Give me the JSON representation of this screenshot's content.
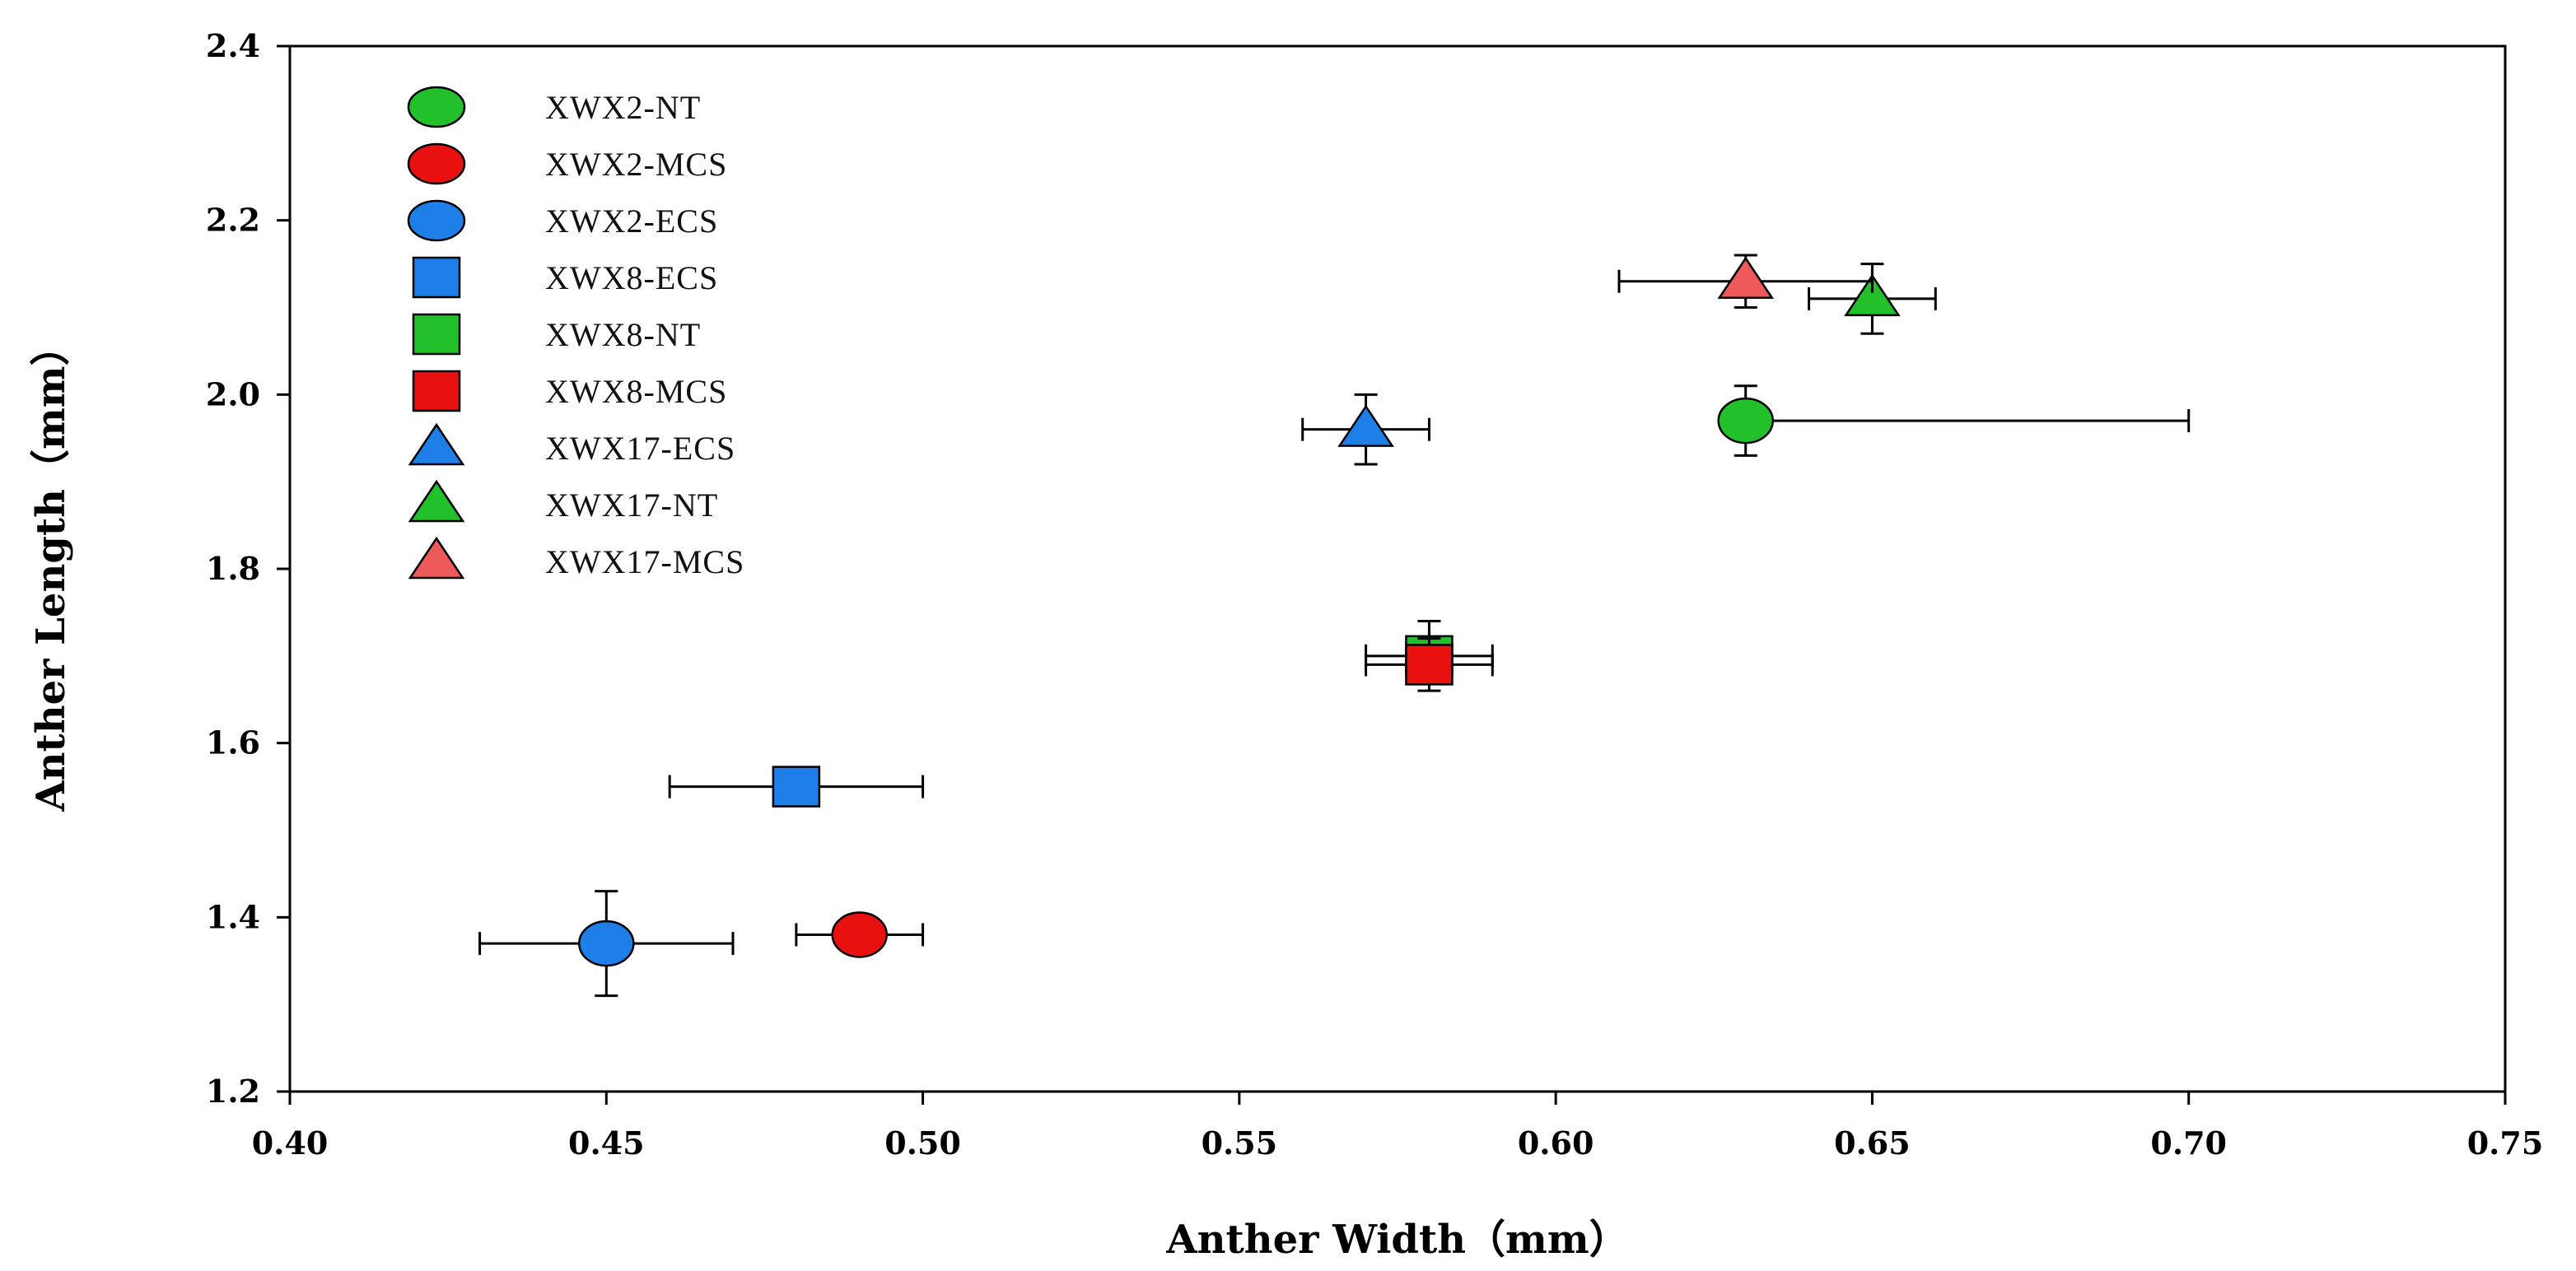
{
  "chart_data": {
    "type": "scatter",
    "title": "",
    "xlabel": "Anther Width（mm）",
    "ylabel": "Anther Length（mm）",
    "xlim": [
      0.4,
      0.75
    ],
    "ylim": [
      1.2,
      2.4
    ],
    "xticks": [
      "0.40",
      "0.45",
      "0.50",
      "0.55",
      "0.60",
      "0.65",
      "0.70",
      "0.75"
    ],
    "yticks": [
      "1.2",
      "1.4",
      "1.6",
      "1.8",
      "2.0",
      "2.2",
      "2.4"
    ],
    "grid": false,
    "legend_position": "top-left",
    "series": [
      {
        "name": "XWX2-NT",
        "marker": "circle",
        "color": "#22c02a",
        "x": 0.63,
        "y": 1.97,
        "xerr": [
          0.63,
          0.7
        ],
        "yerr": [
          1.93,
          2.01
        ]
      },
      {
        "name": "XWX2-MCS",
        "marker": "circle",
        "color": "#e8110f",
        "x": 0.49,
        "y": 1.38,
        "xerr": [
          0.48,
          0.5
        ],
        "yerr": [
          1.38,
          1.38
        ]
      },
      {
        "name": "XWX2-ECS",
        "marker": "circle",
        "color": "#1e7fe8",
        "x": 0.45,
        "y": 1.37,
        "xerr": [
          0.43,
          0.47
        ],
        "yerr": [
          1.31,
          1.43
        ]
      },
      {
        "name": "XWX8-ECS",
        "marker": "square",
        "color": "#1e7fe8",
        "x": 0.48,
        "y": 1.55,
        "xerr": [
          0.46,
          0.5
        ],
        "yerr": [
          1.55,
          1.55
        ]
      },
      {
        "name": "XWX8-NT",
        "marker": "square",
        "color": "#22c02a",
        "x": 0.58,
        "y": 1.7,
        "xerr": [
          0.57,
          0.59
        ],
        "yerr": [
          1.67,
          1.74
        ]
      },
      {
        "name": "XWX8-MCS",
        "marker": "square",
        "color": "#e8110f",
        "x": 0.58,
        "y": 1.69,
        "xerr": [
          0.57,
          0.59
        ],
        "yerr": [
          1.66,
          1.72
        ]
      },
      {
        "name": "XWX17-ECS",
        "marker": "triangle",
        "color": "#1e7fe8",
        "x": 0.57,
        "y": 1.96,
        "xerr": [
          0.56,
          0.58
        ],
        "yerr": [
          1.92,
          2.0
        ]
      },
      {
        "name": "XWX17-NT",
        "marker": "triangle",
        "color": "#22c02a",
        "x": 0.65,
        "y": 2.11,
        "xerr": [
          0.64,
          0.66
        ],
        "yerr": [
          2.07,
          2.15
        ]
      },
      {
        "name": "XWX17-MCS",
        "marker": "triangle",
        "color": "#ee5a5a",
        "x": 0.63,
        "y": 2.13,
        "xerr": [
          0.61,
          0.65
        ],
        "yerr": [
          2.1,
          2.16
        ]
      }
    ]
  }
}
